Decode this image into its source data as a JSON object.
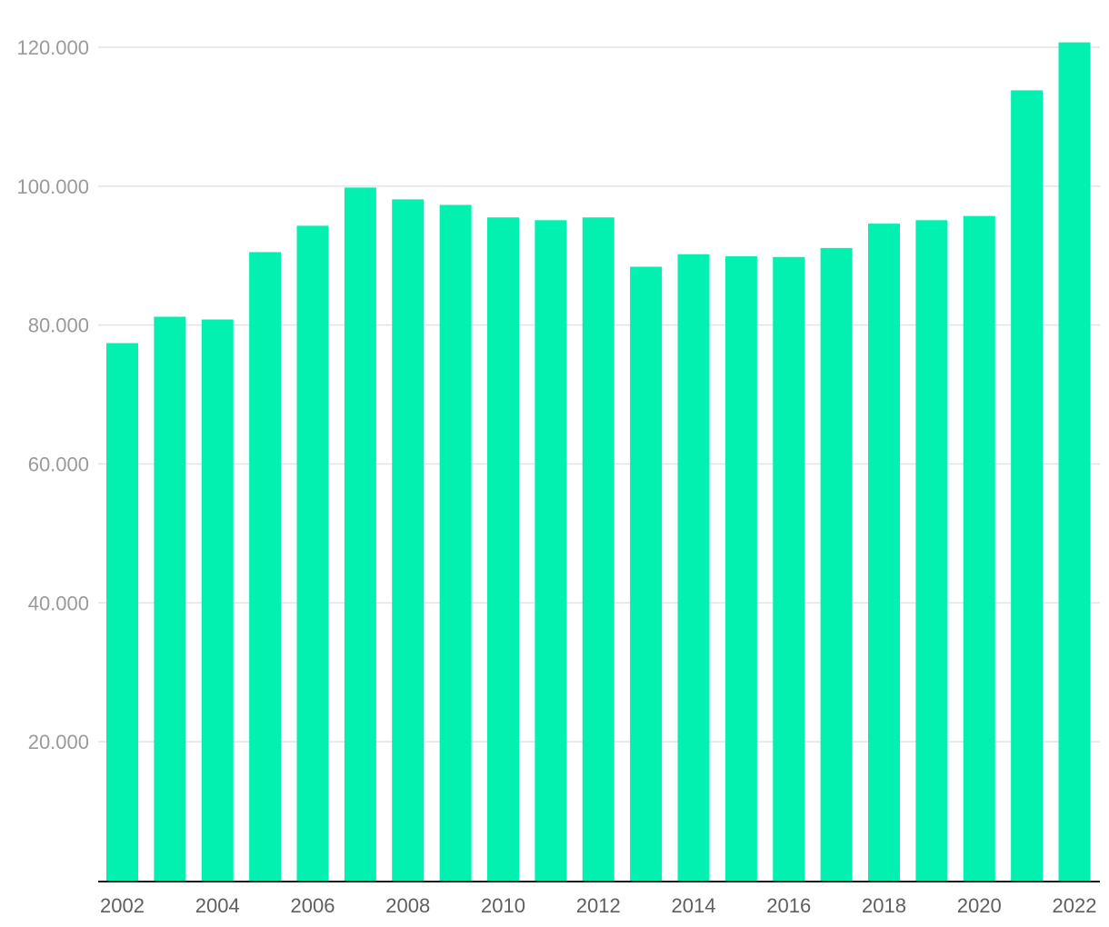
{
  "chart_data": {
    "type": "bar",
    "title": "",
    "xlabel": "",
    "ylabel": "",
    "categories": [
      "2002",
      "2003",
      "2004",
      "2005",
      "2006",
      "2007",
      "2008",
      "2009",
      "2010",
      "2011",
      "2012",
      "2013",
      "2014",
      "2015",
      "2016",
      "2017",
      "2018",
      "2019",
      "2020",
      "2021",
      "2022"
    ],
    "values": [
      77400,
      81200,
      80800,
      90500,
      94300,
      99800,
      98100,
      97300,
      95500,
      95100,
      95500,
      88400,
      90200,
      89900,
      89800,
      91100,
      94600,
      95100,
      95700,
      113800,
      120700
    ],
    "ylim": [
      0,
      120000
    ],
    "y_ticks": [
      20000,
      40000,
      60000,
      80000,
      100000,
      120000
    ],
    "y_tick_labels": [
      "20.000",
      "40.000",
      "60.000",
      "80.000",
      "100.000",
      "120.000"
    ],
    "x_tick_labels": [
      "2002",
      "2004",
      "2006",
      "2008",
      "2010",
      "2012",
      "2014",
      "2016",
      "2018",
      "2020",
      "2022"
    ],
    "grid": true,
    "legend": "none",
    "colors": {
      "bar": "#03f1b0",
      "grid": "#e3e3e3",
      "baseline": "#1a1a1a"
    }
  }
}
